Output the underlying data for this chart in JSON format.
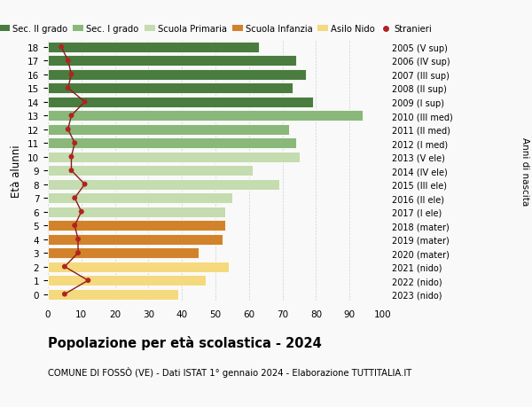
{
  "ages": [
    18,
    17,
    16,
    15,
    14,
    13,
    12,
    11,
    10,
    9,
    8,
    7,
    6,
    5,
    4,
    3,
    2,
    1,
    0
  ],
  "bar_values": [
    63,
    74,
    77,
    73,
    79,
    94,
    72,
    74,
    75,
    61,
    69,
    55,
    53,
    53,
    52,
    45,
    54,
    47,
    39
  ],
  "stranieri_values": [
    4,
    6,
    7,
    6,
    11,
    7,
    6,
    8,
    7,
    7,
    11,
    8,
    10,
    8,
    9,
    9,
    5,
    12,
    5
  ],
  "right_labels": [
    "2005 (V sup)",
    "2006 (IV sup)",
    "2007 (III sup)",
    "2008 (II sup)",
    "2009 (I sup)",
    "2010 (III med)",
    "2011 (II med)",
    "2012 (I med)",
    "2013 (V ele)",
    "2014 (IV ele)",
    "2015 (III ele)",
    "2016 (II ele)",
    "2017 (I ele)",
    "2018 (mater)",
    "2019 (mater)",
    "2020 (mater)",
    "2021 (nido)",
    "2022 (nido)",
    "2023 (nido)"
  ],
  "bar_colors": [
    "#4a7c3f",
    "#4a7c3f",
    "#4a7c3f",
    "#4a7c3f",
    "#4a7c3f",
    "#8ab87a",
    "#8ab87a",
    "#8ab87a",
    "#c5dbb0",
    "#c5dbb0",
    "#c5dbb0",
    "#c5dbb0",
    "#c5dbb0",
    "#d2822a",
    "#d2822a",
    "#d2822a",
    "#f5d97e",
    "#f5d97e",
    "#f5d97e"
  ],
  "legend_labels": [
    "Sec. II grado",
    "Sec. I grado",
    "Scuola Primaria",
    "Scuola Infanzia",
    "Asilo Nido",
    "Stranieri"
  ],
  "legend_colors": [
    "#4a7c3f",
    "#8ab87a",
    "#c5dbb0",
    "#d2822a",
    "#f5d97e",
    "#b22222"
  ],
  "stranieri_color": "#b22222",
  "stranieri_line_color": "#8b1a1a",
  "ylabel": "Età alunni",
  "right_ylabel": "Anni di nascita",
  "title": "Popolazione per età scolastica - 2024",
  "subtitle": "COMUNE DI FOSSÒ (VE) - Dati ISTAT 1° gennaio 2024 - Elaborazione TUTTITALIA.IT",
  "xlim": [
    0,
    100
  ],
  "bg_color": "#f9f9f9",
  "grid_color": "#cccccc"
}
